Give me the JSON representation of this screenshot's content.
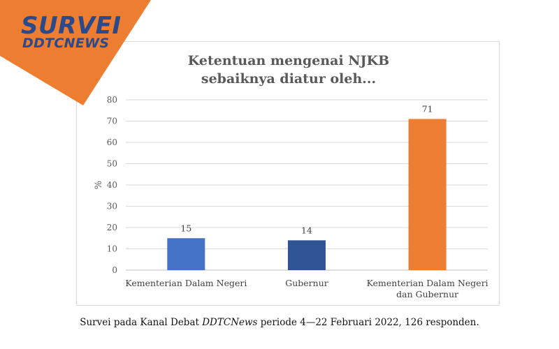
{
  "banner": {
    "title": "SURVEI",
    "subtitle": "DDTCNEWS",
    "color": "#ED7D31",
    "text_color": "#2B4A8B"
  },
  "caption": {
    "prefix": "Survei pada Kanal Debat ",
    "source": "DDTCNews",
    "suffix": " periode 4—22 Februari 2022, 126 responden."
  },
  "chart_data": {
    "type": "bar",
    "title": [
      "Ketentuan mengenai NJKB",
      "sebaiknya diatur oleh..."
    ],
    "ylabel": "%",
    "xlabel": "",
    "ylim": [
      0,
      80
    ],
    "yticks": [
      0,
      10,
      20,
      30,
      40,
      50,
      60,
      70,
      80
    ],
    "grid": true,
    "categories": [
      [
        "Kementerian Dalam Negeri"
      ],
      [
        "Gubernur"
      ],
      [
        "Kementerian Dalam Negeri",
        "dan Gubernur"
      ]
    ],
    "values": [
      15,
      14,
      71
    ],
    "colors": [
      "#4472C4",
      "#2F5597",
      "#ED7D31"
    ]
  }
}
